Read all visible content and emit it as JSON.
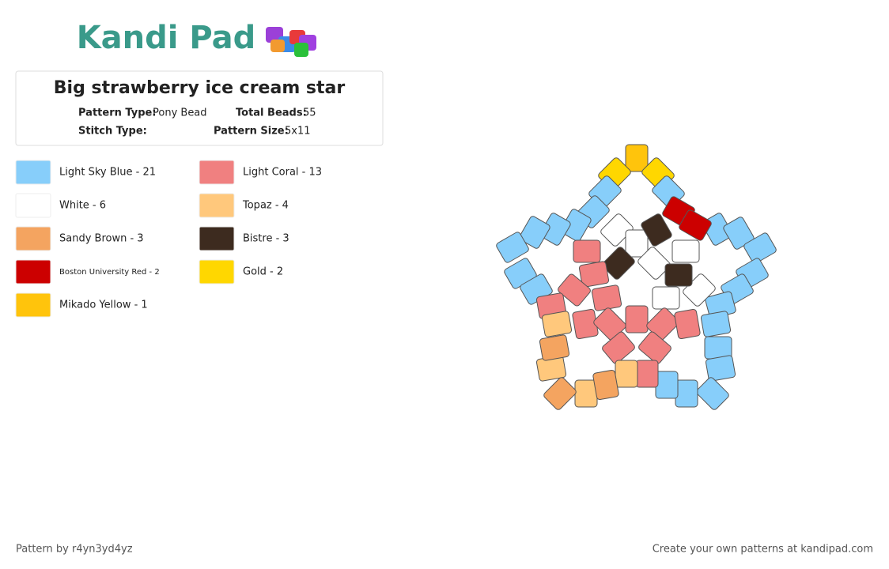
{
  "logo": "Kandi Pad",
  "header": {
    "title": "Big strawberry ice cream star",
    "pattern_type_label": "Pattern Type:",
    "pattern_type": "Pony Bead",
    "total_beads_label": "Total Beads:",
    "total_beads": "55",
    "stitch_type_label": "Stitch Type:",
    "pattern_size_label": "Pattern Size:",
    "pattern_size": "5x11"
  },
  "legend": [
    {
      "label": "Light Sky Blue - 21",
      "color": "#87cefa"
    },
    {
      "label": "White - 6",
      "color": "#ffffff"
    },
    {
      "label": "Sandy Brown - 3",
      "color": "#f4a460"
    },
    {
      "label": "Boston University Red - 2",
      "color": "#cc0000"
    },
    {
      "label": "Mikado Yellow - 1",
      "color": "#ffc40c"
    },
    {
      "label": "Light Coral - 13",
      "color": "#f08080"
    },
    {
      "label": "Topaz - 4",
      "color": "#ffc87c"
    },
    {
      "label": "Bistre - 3",
      "color": "#3d2b1f"
    },
    {
      "label": "Gold - 2",
      "color": "#ffd700"
    }
  ],
  "footer": {
    "author": "Pattern by r4yn3yd4yz",
    "link": "Create your own patterns at kandipad.com"
  }
}
